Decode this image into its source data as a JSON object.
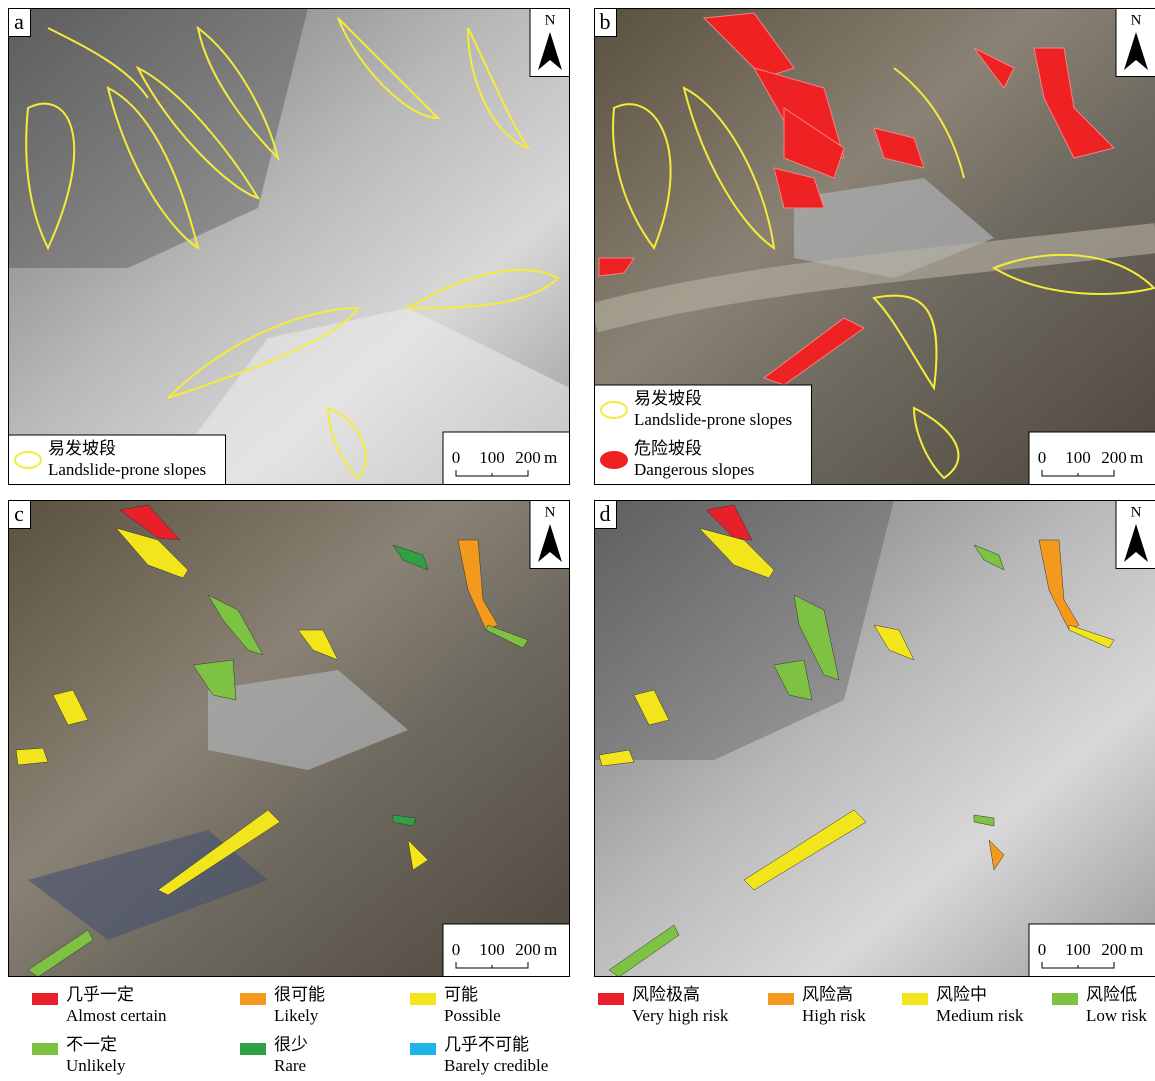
{
  "panels": [
    {
      "label": "a",
      "north": "N",
      "scale": [
        "0",
        "100",
        "200"
      ],
      "unit": "m",
      "legend": [
        {
          "zh": "易发坡段",
          "en": "Landslide-prone slopes",
          "style": "outline",
          "color": "#f5ec3a"
        }
      ]
    },
    {
      "label": "b",
      "north": "N",
      "scale": [
        "0",
        "100",
        "200"
      ],
      "unit": "m",
      "legend": [
        {
          "zh": "易发坡段",
          "en": "Landslide-prone slopes",
          "style": "outline",
          "color": "#f5ec3a"
        },
        {
          "zh": "危险坡段",
          "en": "Dangerous slopes",
          "style": "fill",
          "color": "#ee2222"
        }
      ]
    },
    {
      "label": "c",
      "north": "N",
      "scale": [
        "0",
        "100",
        "200"
      ],
      "unit": "m"
    },
    {
      "label": "d",
      "north": "N",
      "scale": [
        "0",
        "100",
        "200"
      ],
      "unit": "m"
    }
  ],
  "legend_c": [
    {
      "zh": "几乎一定",
      "en": "Almost certain",
      "color": "#e8202a"
    },
    {
      "zh": "很可能",
      "en": "Likely",
      "color": "#f39a1e"
    },
    {
      "zh": "可能",
      "en": "Possible",
      "color": "#f2e51b"
    },
    {
      "zh": "不一定",
      "en": "Unlikely",
      "color": "#7dc242"
    },
    {
      "zh": "很少",
      "en": "Rare",
      "color": "#2fa144"
    },
    {
      "zh": "几乎不可能",
      "en": "Barely credible",
      "color": "#1fb4e8"
    }
  ],
  "legend_d": [
    {
      "zh": "风险极高",
      "en": "Very high risk",
      "color": "#e8202a"
    },
    {
      "zh": "风险高",
      "en": "High risk",
      "color": "#f39a1e"
    },
    {
      "zh": "风险中",
      "en": "Medium risk",
      "color": "#f2e51b"
    },
    {
      "zh": "风险低",
      "en": "Low risk",
      "color": "#7dc242"
    }
  ]
}
